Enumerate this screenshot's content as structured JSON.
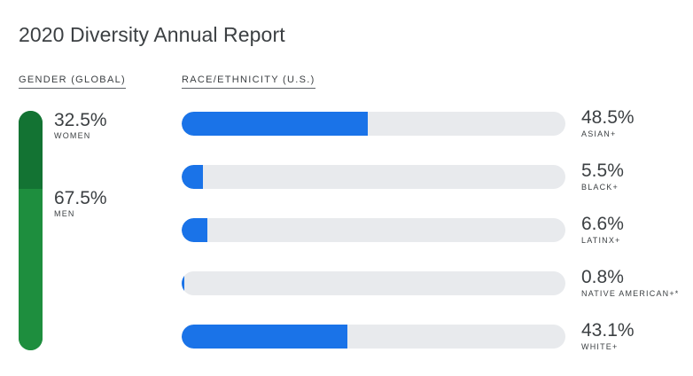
{
  "title": "2020 Diversity Annual Report",
  "gender_section_label": "GENDER (GLOBAL)",
  "race_section_label": "RACE/ETHNICITY (U.S.)",
  "colors": {
    "women": "#137333",
    "men": "#1e8e3e",
    "race_fill": "#1a73e8",
    "race_track": "#e8eaed"
  },
  "chart_data": [
    {
      "type": "bar",
      "orientation": "vertical-stacked",
      "title": "GENDER (GLOBAL)",
      "categories": [
        "WOMEN",
        "MEN"
      ],
      "values": [
        32.5,
        67.5
      ],
      "value_labels": [
        "32.5%",
        "67.5%"
      ],
      "unit": "%"
    },
    {
      "type": "bar",
      "orientation": "horizontal",
      "title": "RACE/ETHNICITY (U.S.)",
      "categories": [
        "ASIAN+",
        "BLACK+",
        "LATINX+",
        "NATIVE AMERICAN+*",
        "WHITE+"
      ],
      "values": [
        48.5,
        5.5,
        6.6,
        0.8,
        43.1
      ],
      "value_labels": [
        "48.5%",
        "5.5%",
        "6.6%",
        "0.8%",
        "43.1%"
      ],
      "xlim": [
        0,
        100
      ],
      "unit": "%"
    }
  ]
}
